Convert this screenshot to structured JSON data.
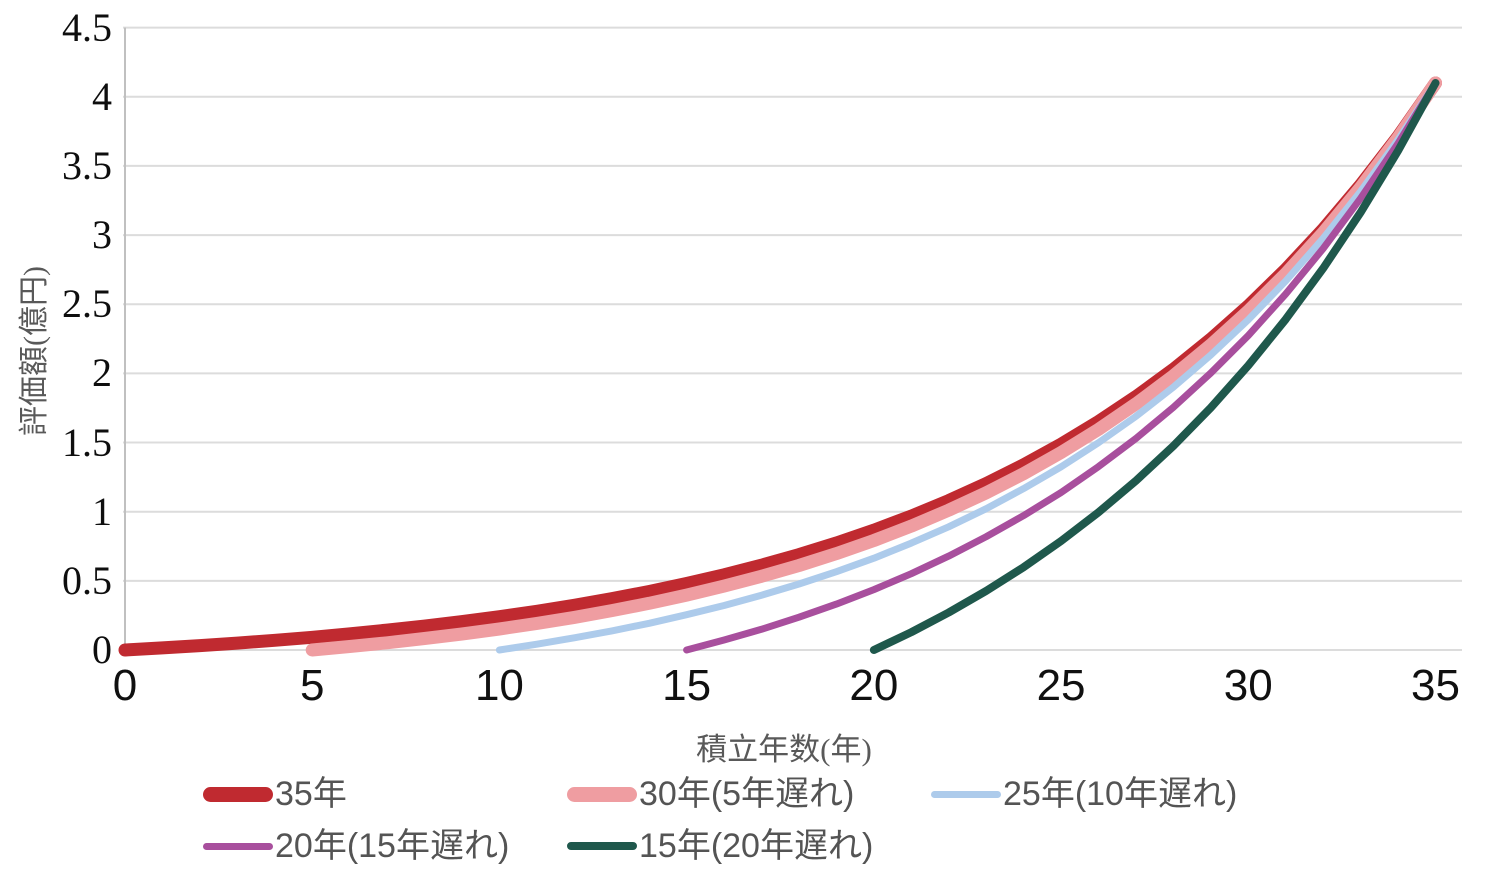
{
  "chart_data": {
    "type": "line",
    "title": "",
    "xlabel": "積立年数(年)",
    "ylabel": "評価額(億円)",
    "xlim": [
      0,
      35
    ],
    "ylim": [
      0,
      4.5
    ],
    "xticks": [
      0,
      5,
      10,
      15,
      20,
      25,
      30,
      35
    ],
    "yticks": [
      0,
      0.5,
      1,
      1.5,
      2,
      2.5,
      3,
      3.5,
      4,
      4.5
    ],
    "ytick_labels": [
      "0",
      "0.5",
      "1",
      "1.5",
      "2",
      "2.5",
      "3",
      "3.5",
      "4",
      "4.5"
    ],
    "grid": "horizontal",
    "grid_color": "#dcdcdc",
    "axis_line_color": "#c0c0c0",
    "legend_position": "bottom",
    "series": [
      {
        "id": "35y",
        "label": "35年",
        "color": "#c02a30",
        "stroke_width": 13,
        "start_year": 0,
        "x": [
          0,
          1,
          2,
          3,
          4,
          5,
          6,
          7,
          8,
          9,
          10,
          11,
          12,
          13,
          14,
          15,
          16,
          17,
          18,
          19,
          20,
          21,
          22,
          23,
          24,
          25,
          26,
          27,
          28,
          29,
          30,
          31,
          32,
          33,
          34,
          35
        ],
        "y": [
          0,
          0.015,
          0.032,
          0.05,
          0.07,
          0.092,
          0.117,
          0.144,
          0.173,
          0.205,
          0.241,
          0.28,
          0.323,
          0.371,
          0.423,
          0.481,
          0.544,
          0.613,
          0.69,
          0.774,
          0.866,
          0.968,
          1.08,
          1.203,
          1.339,
          1.488,
          1.652,
          1.832,
          2.03,
          2.248,
          2.488,
          2.752,
          3.043,
          3.362,
          3.713,
          4.1
        ]
      },
      {
        "id": "30y",
        "label": "30年(5年遅れ)",
        "color": "#ef9da1",
        "stroke_width": 13,
        "start_year": 5,
        "x": [
          5,
          6,
          7,
          8,
          9,
          10,
          11,
          12,
          13,
          14,
          15,
          16,
          17,
          18,
          19,
          20,
          21,
          22,
          23,
          24,
          25,
          26,
          27,
          28,
          29,
          30,
          31,
          32,
          33,
          34,
          35
        ],
        "y": [
          0,
          0.025,
          0.052,
          0.083,
          0.116,
          0.152,
          0.192,
          0.236,
          0.285,
          0.338,
          0.397,
          0.462,
          0.533,
          0.611,
          0.697,
          0.792,
          0.896,
          1.011,
          1.137,
          1.275,
          1.428,
          1.595,
          1.78,
          1.983,
          2.206,
          2.451,
          2.721,
          3.018,
          3.345,
          3.704,
          4.1
        ]
      },
      {
        "id": "25y",
        "label": "25年(10年遅れ)",
        "color": "#adcbeb",
        "stroke_width": 7,
        "start_year": 10,
        "x": [
          10,
          11,
          12,
          13,
          14,
          15,
          16,
          17,
          18,
          19,
          20,
          21,
          22,
          23,
          24,
          25,
          26,
          27,
          28,
          29,
          30,
          31,
          32,
          33,
          34,
          35
        ],
        "y": [
          0,
          0.042,
          0.088,
          0.138,
          0.193,
          0.255,
          0.322,
          0.396,
          0.477,
          0.566,
          0.664,
          0.773,
          0.891,
          1.022,
          1.167,
          1.325,
          1.499,
          1.69,
          1.901,
          2.133,
          2.388,
          2.668,
          2.977,
          3.316,
          3.69,
          4.1
        ]
      },
      {
        "id": "20y",
        "label": "20年(15年遅れ)",
        "color": "#a84f9d",
        "stroke_width": 7,
        "start_year": 15,
        "x": [
          15,
          16,
          17,
          18,
          19,
          20,
          21,
          22,
          23,
          24,
          25,
          26,
          27,
          28,
          29,
          30,
          31,
          32,
          33,
          34,
          35
        ],
        "y": [
          0,
          0.072,
          0.15,
          0.237,
          0.332,
          0.437,
          0.552,
          0.679,
          0.819,
          0.972,
          1.139,
          1.326,
          1.53,
          1.755,
          2.003,
          2.274,
          2.574,
          2.903,
          3.266,
          3.664,
          4.1
        ]
      },
      {
        "id": "15y",
        "label": "15年(20年遅れ)",
        "color": "#1f584c",
        "stroke_width": 8,
        "start_year": 20,
        "x": [
          20,
          21,
          22,
          23,
          24,
          25,
          26,
          27,
          28,
          29,
          30,
          31,
          32,
          33,
          34,
          35
        ],
        "y": [
          0,
          0.129,
          0.271,
          0.427,
          0.599,
          0.788,
          0.996,
          1.224,
          1.476,
          1.752,
          2.057,
          2.391,
          2.76,
          3.164,
          3.61,
          4.1
        ]
      }
    ]
  }
}
